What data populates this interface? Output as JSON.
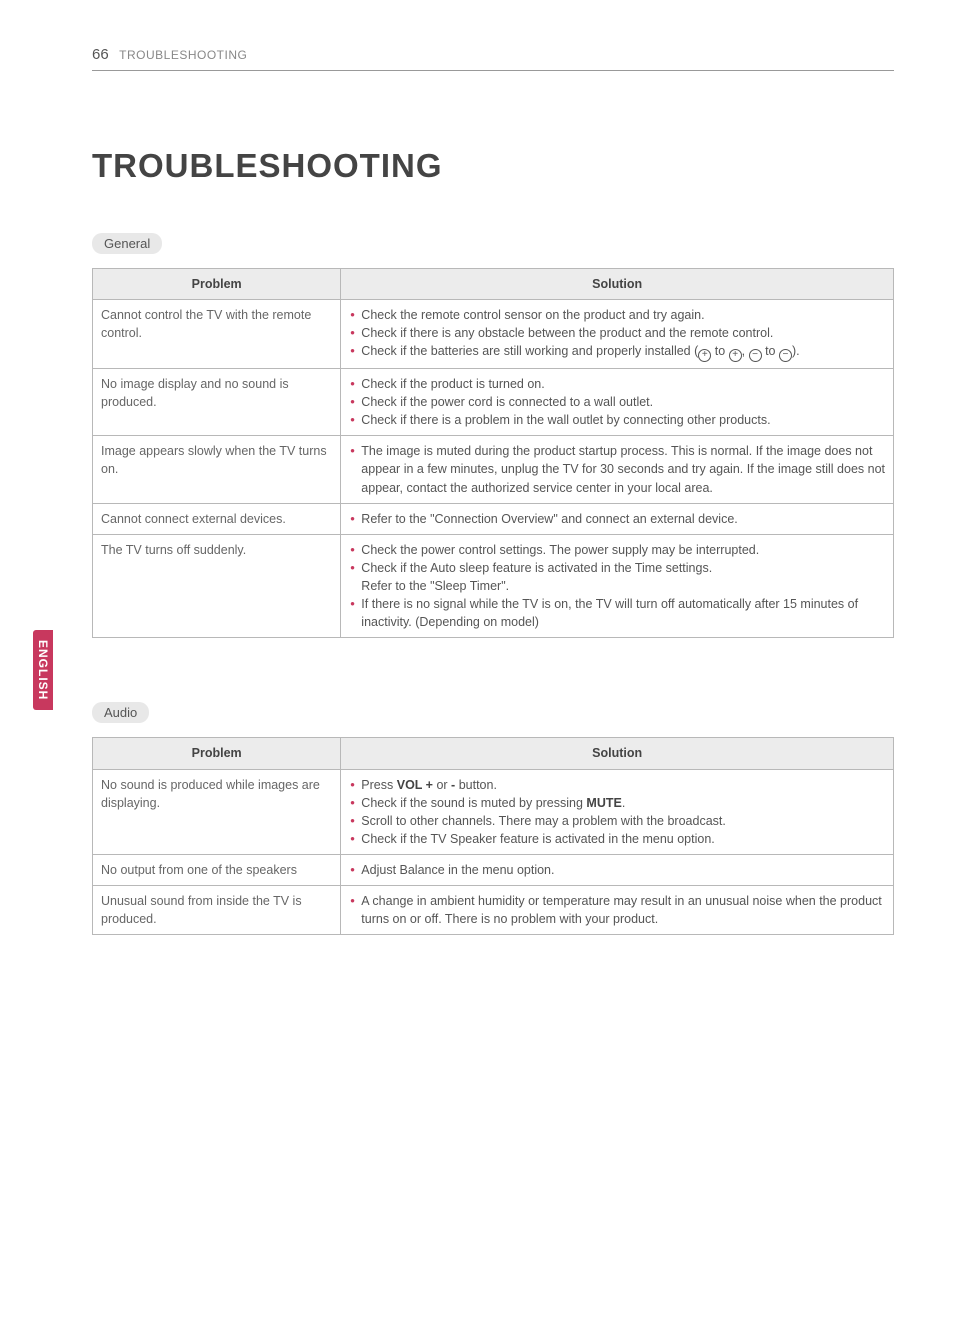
{
  "page": {
    "number": "66",
    "section": "TROUBLESHOOTING"
  },
  "title": "TROUBLESHOOTING",
  "side_tab": "ENGLISH",
  "colors": {
    "accent": "#c8385e",
    "pill_bg": "#e8e8e8",
    "header_bg": "#ececec",
    "border": "#b8b8b8",
    "text": "#555555"
  },
  "tables": [
    {
      "label": "General",
      "columns": [
        "Problem",
        "Solution"
      ],
      "rows": [
        {
          "problem": "Cannot control the TV with the remote control.",
          "solutions": [
            "Check the remote control sensor on the product and try again.",
            "Check if there is any obstacle between the product and the remote control.",
            "Check if the batteries are still working and properly installed (⊕ to ⊕, ⊖ to ⊖)."
          ]
        },
        {
          "problem": "No image display and no sound is produced.",
          "solutions": [
            "Check if the product is turned on.",
            "Check if the power cord is connected to a wall outlet.",
            "Check if there is a problem in the wall outlet by connecting other products."
          ]
        },
        {
          "problem": "Image appears slowly when the TV turns on.",
          "solutions": [
            "The image is muted during the product startup process. This is normal. If the image does not appear in a few minutes, unplug the TV for 30 seconds and try again. If the image still does not appear, contact the authorized service center in your local area."
          ]
        },
        {
          "problem": "Cannot connect external devices.",
          "solutions": [
            "Refer to the \"Connection Overview\" and connect an external device."
          ]
        },
        {
          "problem": "The TV turns off suddenly.",
          "solutions": [
            "Check the power control settings. The power supply may be interrupted.",
            "Check if the Auto sleep feature is activated in the Time settings.\nRefer to the \"Sleep Timer\".",
            "If there is no signal while the TV is on, the TV will turn off automatically after 15 minutes of inactivity. (Depending on model)"
          ]
        }
      ]
    },
    {
      "label": "Audio",
      "columns": [
        "Problem",
        "Solution"
      ],
      "rows": [
        {
          "problem": "No sound is produced while images are displaying.",
          "solutions": [
            "Press <b>VOL +</b> or <b>-</b> button.",
            "Check if the sound is muted by pressing <b>MUTE</b>.",
            "Scroll to other channels. There may a problem with the broadcast.",
            "Check if the TV Speaker feature is activated in the menu option."
          ]
        },
        {
          "problem": "No output from one of the speakers",
          "solutions": [
            "Adjust Balance in the menu option."
          ]
        },
        {
          "problem": "Unusual sound from inside the TV is produced.",
          "solutions": [
            "A change in ambient humidity or temperature may result in an unusual noise when the product turns on or off. There is no problem with your product."
          ]
        }
      ]
    }
  ]
}
